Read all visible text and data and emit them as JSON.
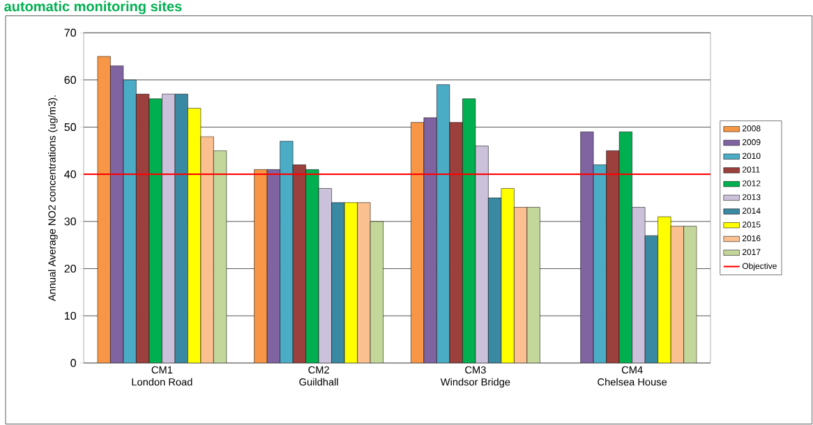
{
  "chart_data": {
    "type": "bar",
    "title": "automatic monitoring sites",
    "ylabel": "Annual Average NO2 concentrations (ug/m3).",
    "categories": [
      "CM1\nLondon Road",
      "CM2\nGuildhall",
      "CM3\nWindsor Bridge",
      "CM4\nChelsea House"
    ],
    "series": [
      {
        "name": "2008",
        "color": "#f79646",
        "values": [
          65,
          41,
          51,
          null
        ]
      },
      {
        "name": "2009",
        "color": "#8064a2",
        "values": [
          63,
          41,
          52,
          49
        ]
      },
      {
        "name": "2010",
        "color": "#4bacc6",
        "values": [
          60,
          47,
          59,
          42
        ]
      },
      {
        "name": "2011",
        "color": "#9b403d",
        "values": [
          57,
          42,
          51,
          45
        ]
      },
      {
        "name": "2012",
        "color": "#00b050",
        "values": [
          56,
          41,
          56,
          49
        ]
      },
      {
        "name": "2013",
        "color": "#ccc1da",
        "values": [
          57,
          37,
          46,
          33
        ]
      },
      {
        "name": "2014",
        "color": "#3a89a3",
        "values": [
          57,
          34,
          35,
          27
        ]
      },
      {
        "name": "2015",
        "color": "#ffff00",
        "values": [
          54,
          34,
          37,
          31
        ]
      },
      {
        "name": "2016",
        "color": "#fac090",
        "values": [
          48,
          34,
          33,
          29
        ]
      },
      {
        "name": "2017",
        "color": "#c4d79b",
        "values": [
          45,
          30,
          33,
          29
        ]
      }
    ],
    "ref_lines": [
      {
        "axis": "y",
        "value": 40,
        "label": "Objective",
        "color": "#ff0000"
      }
    ],
    "ylim": [
      0,
      70
    ],
    "yticks": [
      0,
      10,
      20,
      30,
      40,
      50,
      60,
      70
    ],
    "grid": "y",
    "legend": "right"
  }
}
